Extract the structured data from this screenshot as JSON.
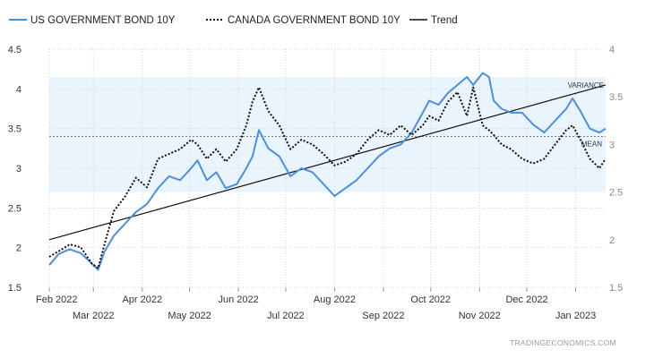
{
  "chart_data": {
    "type": "line",
    "title": "",
    "xlabel": "",
    "ylabel": "",
    "legend": {
      "placement": "top-left",
      "entries": [
        {
          "label": "US GOVERNMENT BOND 10Y",
          "color": "#4a90e2",
          "style": "solid"
        },
        {
          "label": "CANADA GOVERNMENT BOND 10Y",
          "color": "#111111",
          "style": "dotted"
        },
        {
          "label": "Trend",
          "color": "#111111",
          "style": "solid"
        }
      ]
    },
    "x_ticks_upper": [
      "Feb 2022",
      "Apr 2022",
      "Jun 2022",
      "Aug 2022",
      "Oct 2022",
      "Dec 2022"
    ],
    "x_ticks_lower": [
      "Mar 2022",
      "May 2022",
      "Jul 2022",
      "Sep 2022",
      "Nov 2022",
      "Jan 2023"
    ],
    "x_tick_dates_upper": [
      "2022-02-01",
      "2022-04-01",
      "2022-06-01",
      "2022-08-01",
      "2022-10-01",
      "2022-12-01"
    ],
    "x_tick_dates_lower": [
      "2022-03-01",
      "2022-05-01",
      "2022-07-01",
      "2022-09-01",
      "2022-11-01",
      "2023-01-01"
    ],
    "xlim": [
      "2022-02-01",
      "2023-01-20"
    ],
    "left_axis": {
      "ylim": [
        1.5,
        4.5
      ],
      "ticks": [
        1.5,
        2,
        2.5,
        3,
        3.5,
        4,
        4.5
      ],
      "tick_labels": [
        "1.5",
        "2",
        "2.5",
        "3",
        "3.5",
        "4",
        "4.5"
      ]
    },
    "right_axis": {
      "ylim": [
        1.5,
        4
      ],
      "ticks": [
        1.5,
        2,
        2.5,
        3,
        3.5,
        4
      ],
      "tick_labels": [
        "1.5",
        "2",
        "2.5",
        "3",
        "3.5",
        "4"
      ]
    },
    "grid": true,
    "variance_band": {
      "low": 2.7,
      "high": 4.15,
      "color": "#e9f4fd"
    },
    "mean_line": {
      "value": 3.4
    },
    "annotations": {
      "variance": "VARIANCE",
      "mean": "MEAN"
    },
    "trend": {
      "x": [
        "2022-02-01",
        "2023-01-20"
      ],
      "y": [
        2.1,
        4.05
      ]
    },
    "series": [
      {
        "name": "US GOVERNMENT BOND 10Y",
        "axis": "left",
        "x": [
          "2022-02-01",
          "2022-02-07",
          "2022-02-14",
          "2022-02-21",
          "2022-02-28",
          "2022-03-04",
          "2022-03-08",
          "2022-03-14",
          "2022-03-21",
          "2022-03-28",
          "2022-04-04",
          "2022-04-11",
          "2022-04-18",
          "2022-04-25",
          "2022-05-02",
          "2022-05-06",
          "2022-05-12",
          "2022-05-18",
          "2022-05-24",
          "2022-05-31",
          "2022-06-06",
          "2022-06-10",
          "2022-06-14",
          "2022-06-20",
          "2022-06-27",
          "2022-07-04",
          "2022-07-11",
          "2022-07-18",
          "2022-07-25",
          "2022-08-01",
          "2022-08-08",
          "2022-08-15",
          "2022-08-22",
          "2022-08-29",
          "2022-09-05",
          "2022-09-12",
          "2022-09-19",
          "2022-09-26",
          "2022-09-30",
          "2022-10-06",
          "2022-10-12",
          "2022-10-18",
          "2022-10-24",
          "2022-10-28",
          "2022-11-03",
          "2022-11-07",
          "2022-11-10",
          "2022-11-15",
          "2022-11-21",
          "2022-11-28",
          "2022-12-05",
          "2022-12-12",
          "2022-12-19",
          "2022-12-26",
          "2022-12-30",
          "2023-01-04",
          "2023-01-10",
          "2023-01-16",
          "2023-01-20"
        ],
        "values": [
          1.78,
          1.92,
          1.98,
          1.93,
          1.8,
          1.72,
          1.95,
          2.15,
          2.3,
          2.45,
          2.55,
          2.75,
          2.9,
          2.85,
          3.0,
          3.1,
          2.85,
          2.95,
          2.75,
          2.8,
          3.0,
          3.15,
          3.48,
          3.25,
          3.15,
          2.9,
          3.0,
          2.95,
          2.8,
          2.65,
          2.75,
          2.85,
          3.0,
          3.15,
          3.25,
          3.3,
          3.45,
          3.7,
          3.85,
          3.8,
          3.95,
          4.05,
          4.15,
          4.05,
          4.2,
          4.15,
          3.85,
          3.75,
          3.7,
          3.7,
          3.55,
          3.45,
          3.6,
          3.75,
          3.88,
          3.72,
          3.5,
          3.45,
          3.5
        ]
      },
      {
        "name": "CANADA GOVERNMENT BOND 10Y",
        "axis": "right",
        "x": [
          "2022-02-01",
          "2022-02-07",
          "2022-02-14",
          "2022-02-21",
          "2022-02-28",
          "2022-03-04",
          "2022-03-08",
          "2022-03-14",
          "2022-03-21",
          "2022-03-28",
          "2022-04-04",
          "2022-04-11",
          "2022-04-18",
          "2022-04-25",
          "2022-05-02",
          "2022-05-06",
          "2022-05-12",
          "2022-05-18",
          "2022-05-24",
          "2022-05-31",
          "2022-06-06",
          "2022-06-10",
          "2022-06-14",
          "2022-06-20",
          "2022-06-27",
          "2022-07-04",
          "2022-07-11",
          "2022-07-18",
          "2022-07-25",
          "2022-08-01",
          "2022-08-08",
          "2022-08-15",
          "2022-08-22",
          "2022-08-29",
          "2022-09-05",
          "2022-09-12",
          "2022-09-19",
          "2022-09-26",
          "2022-09-30",
          "2022-10-06",
          "2022-10-12",
          "2022-10-18",
          "2022-10-24",
          "2022-10-28",
          "2022-11-03",
          "2022-11-07",
          "2022-11-10",
          "2022-11-15",
          "2022-11-21",
          "2022-11-28",
          "2022-12-05",
          "2022-12-12",
          "2022-12-19",
          "2022-12-26",
          "2022-12-30",
          "2023-01-04",
          "2023-01-10",
          "2023-01-16",
          "2023-01-20"
        ],
        "values": [
          1.82,
          1.88,
          1.95,
          1.92,
          1.75,
          1.7,
          1.95,
          2.3,
          2.45,
          2.65,
          2.55,
          2.85,
          2.9,
          2.95,
          3.05,
          3.0,
          2.85,
          2.95,
          2.82,
          2.95,
          3.2,
          3.45,
          3.6,
          3.35,
          3.2,
          2.95,
          3.05,
          3.0,
          2.9,
          2.78,
          2.82,
          2.9,
          3.05,
          3.15,
          3.1,
          3.2,
          3.1,
          3.2,
          3.3,
          3.25,
          3.45,
          3.55,
          3.3,
          3.6,
          3.2,
          3.15,
          3.1,
          3.0,
          2.95,
          2.85,
          2.8,
          2.85,
          3.0,
          3.15,
          3.2,
          3.05,
          2.85,
          2.75,
          2.85
        ]
      }
    ]
  },
  "credit": "TRADINGECONOMICS.COM"
}
